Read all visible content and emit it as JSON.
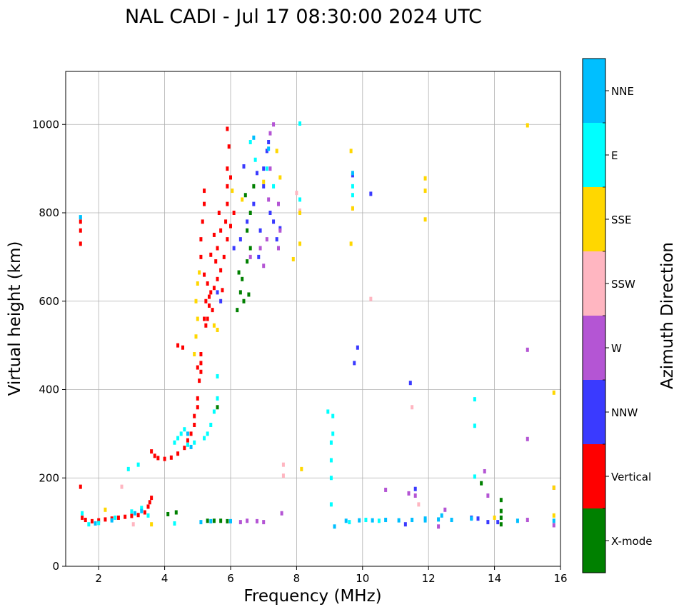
{
  "chart_data": {
    "type": "scatter",
    "title": "NAL CADI - Jul 17 08:30:00 2024 UTC",
    "xlabel": "Frequency (MHz)",
    "ylabel": "Virtual height (km)",
    "xlim": [
      1,
      16
    ],
    "ylim": [
      0,
      1120
    ],
    "xticks": [
      2,
      4,
      6,
      8,
      10,
      12,
      14,
      16
    ],
    "yticks": [
      0,
      200,
      400,
      600,
      800,
      1000
    ],
    "grid": true,
    "colorbar": {
      "label": "Azimuth Direction",
      "position": "right",
      "categories": [
        {
          "name": "X-mode",
          "color": "#008000"
        },
        {
          "name": "Vertical",
          "color": "#ff0000"
        },
        {
          "name": "NNW",
          "color": "#3a3aff"
        },
        {
          "name": "W",
          "color": "#b455d4"
        },
        {
          "name": "SSW",
          "color": "#ffb6c1"
        },
        {
          "name": "SSE",
          "color": "#ffd700"
        },
        {
          "name": "E",
          "color": "#00ffff"
        },
        {
          "name": "NNE",
          "color": "#00bfff"
        }
      ]
    },
    "series": [
      {
        "name": "Vertical",
        "points": [
          [
            1.45,
            780
          ],
          [
            1.45,
            760
          ],
          [
            1.45,
            730
          ],
          [
            1.45,
            180
          ],
          [
            1.5,
            110
          ],
          [
            1.6,
            105
          ],
          [
            1.8,
            102
          ],
          [
            2.0,
            104
          ],
          [
            2.2,
            106
          ],
          [
            2.4,
            108
          ],
          [
            2.6,
            110
          ],
          [
            2.8,
            112
          ],
          [
            3.0,
            114
          ],
          [
            3.2,
            116
          ],
          [
            3.4,
            122
          ],
          [
            3.5,
            135
          ],
          [
            3.55,
            145
          ],
          [
            3.6,
            155
          ],
          [
            3.6,
            260
          ],
          [
            3.7,
            250
          ],
          [
            3.8,
            245
          ],
          [
            4.0,
            243
          ],
          [
            4.2,
            246
          ],
          [
            4.4,
            255
          ],
          [
            4.6,
            268
          ],
          [
            4.7,
            285
          ],
          [
            4.8,
            300
          ],
          [
            4.9,
            320
          ],
          [
            4.9,
            340
          ],
          [
            5.0,
            360
          ],
          [
            5.0,
            380
          ],
          [
            5.05,
            420
          ],
          [
            5.1,
            440
          ],
          [
            5.1,
            460
          ],
          [
            5.1,
            480
          ],
          [
            4.4,
            500
          ],
          [
            4.55,
            495
          ],
          [
            5.0,
            450
          ],
          [
            5.2,
            560
          ],
          [
            5.25,
            545
          ],
          [
            5.3,
            560
          ],
          [
            5.35,
            590
          ],
          [
            5.4,
            620
          ],
          [
            5.3,
            640
          ],
          [
            5.2,
            660
          ],
          [
            5.1,
            700
          ],
          [
            5.1,
            740
          ],
          [
            5.15,
            780
          ],
          [
            5.2,
            820
          ],
          [
            5.2,
            850
          ],
          [
            5.25,
            600
          ],
          [
            5.35,
            610
          ],
          [
            5.45,
            580
          ],
          [
            5.5,
            630
          ],
          [
            5.6,
            650
          ],
          [
            5.7,
            670
          ],
          [
            5.8,
            700
          ],
          [
            5.9,
            740
          ],
          [
            5.85,
            780
          ],
          [
            5.9,
            820
          ],
          [
            5.9,
            860
          ],
          [
            5.9,
            900
          ],
          [
            5.95,
            950
          ],
          [
            5.9,
            990
          ],
          [
            5.65,
            800
          ],
          [
            5.7,
            760
          ],
          [
            5.6,
            720
          ],
          [
            6.0,
            770
          ],
          [
            6.0,
            880
          ],
          [
            6.1,
            800
          ],
          [
            5.5,
            750
          ],
          [
            5.55,
            690
          ],
          [
            5.75,
            625
          ],
          [
            5.4,
            705
          ]
        ]
      },
      {
        "name": "X-mode",
        "points": [
          [
            4.1,
            118
          ],
          [
            4.35,
            122
          ],
          [
            5.3,
            103
          ],
          [
            5.5,
            103
          ],
          [
            5.7,
            103
          ],
          [
            5.9,
            102
          ],
          [
            6.2,
            580
          ],
          [
            6.3,
            620
          ],
          [
            6.35,
            650
          ],
          [
            6.4,
            600
          ],
          [
            6.5,
            690
          ],
          [
            6.6,
            720
          ],
          [
            6.5,
            760
          ],
          [
            6.6,
            800
          ],
          [
            6.45,
            840
          ],
          [
            6.7,
            860
          ],
          [
            6.25,
            665
          ],
          [
            6.55,
            615
          ],
          [
            5.6,
            360
          ],
          [
            14.2,
            95
          ],
          [
            14.2,
            110
          ],
          [
            14.2,
            125
          ],
          [
            14.2,
            150
          ],
          [
            13.6,
            188
          ]
        ]
      },
      {
        "name": "NNW",
        "points": [
          [
            5.6,
            620
          ],
          [
            5.7,
            600
          ],
          [
            6.1,
            720
          ],
          [
            6.3,
            740
          ],
          [
            6.5,
            780
          ],
          [
            6.7,
            820
          ],
          [
            6.85,
            700
          ],
          [
            6.9,
            760
          ],
          [
            7.0,
            900
          ],
          [
            7.1,
            940
          ],
          [
            7.0,
            860
          ],
          [
            7.2,
            800
          ],
          [
            7.3,
            780
          ],
          [
            7.4,
            740
          ],
          [
            6.8,
            890
          ],
          [
            7.15,
            960
          ],
          [
            9.75,
            460
          ],
          [
            9.85,
            495
          ],
          [
            10.25,
            843
          ],
          [
            11.45,
            415
          ],
          [
            11.6,
            175
          ],
          [
            11.3,
            95
          ],
          [
            13.3,
            110
          ],
          [
            13.5,
            108
          ],
          [
            13.8,
            100
          ],
          [
            14.1,
            100
          ],
          [
            9.7,
            885
          ],
          [
            7.5,
            765
          ],
          [
            6.4,
            905
          ]
        ]
      },
      {
        "name": "W",
        "points": [
          [
            6.3,
            100
          ],
          [
            6.5,
            103
          ],
          [
            6.8,
            102
          ],
          [
            7.0,
            100
          ],
          [
            6.6,
            700
          ],
          [
            6.9,
            720
          ],
          [
            7.0,
            680
          ],
          [
            7.1,
            740
          ],
          [
            7.15,
            830
          ],
          [
            7.2,
            900
          ],
          [
            7.3,
            1000
          ],
          [
            7.2,
            980
          ],
          [
            7.45,
            720
          ],
          [
            7.5,
            760
          ],
          [
            7.45,
            820
          ],
          [
            10.7,
            173
          ],
          [
            11.4,
            165
          ],
          [
            11.6,
            160
          ],
          [
            12.5,
            128
          ],
          [
            13.7,
            215
          ],
          [
            13.8,
            160
          ],
          [
            15.0,
            490
          ],
          [
            15.0,
            288
          ],
          [
            15.0,
            105
          ],
          [
            15.8,
            93
          ],
          [
            15.8,
            178
          ],
          [
            12.3,
            90
          ],
          [
            7.55,
            120
          ]
        ]
      },
      {
        "name": "SSW",
        "points": [
          [
            7.6,
            230
          ],
          [
            7.6,
            205
          ],
          [
            8.0,
            845
          ],
          [
            8.1,
            805
          ],
          [
            10.25,
            605
          ],
          [
            11.5,
            360
          ],
          [
            11.7,
            140
          ],
          [
            9.7,
            810
          ],
          [
            3.05,
            95
          ],
          [
            2.7,
            180
          ]
        ]
      },
      {
        "name": "SSE",
        "points": [
          [
            2.2,
            128
          ],
          [
            3.6,
            95
          ],
          [
            4.9,
            480
          ],
          [
            4.95,
            520
          ],
          [
            5.0,
            560
          ],
          [
            4.95,
            600
          ],
          [
            5.0,
            640
          ],
          [
            5.05,
            665
          ],
          [
            5.6,
            535
          ],
          [
            5.5,
            545
          ],
          [
            6.05,
            850
          ],
          [
            6.35,
            830
          ],
          [
            7.0,
            870
          ],
          [
            7.4,
            940
          ],
          [
            7.5,
            880
          ],
          [
            7.9,
            695
          ],
          [
            8.1,
            730
          ],
          [
            8.1,
            800
          ],
          [
            8.15,
            220
          ],
          [
            9.65,
            940
          ],
          [
            9.65,
            730
          ],
          [
            11.9,
            878
          ],
          [
            11.9,
            850
          ],
          [
            11.9,
            785
          ],
          [
            15.0,
            998
          ],
          [
            15.8,
            393
          ],
          [
            15.8,
            178
          ],
          [
            15.8,
            115
          ],
          [
            14.0,
            110
          ],
          [
            9.7,
            810
          ]
        ]
      },
      {
        "name": "E",
        "points": [
          [
            1.45,
            790
          ],
          [
            1.5,
            120
          ],
          [
            1.7,
            95
          ],
          [
            2.0,
            98
          ],
          [
            2.5,
            110
          ],
          [
            2.9,
            220
          ],
          [
            3.2,
            230
          ],
          [
            3.3,
            132
          ],
          [
            3.0,
            124
          ],
          [
            3.5,
            115
          ],
          [
            4.3,
            280
          ],
          [
            4.4,
            290
          ],
          [
            4.5,
            300
          ],
          [
            4.6,
            310
          ],
          [
            4.7,
            275
          ],
          [
            4.9,
            280
          ],
          [
            5.2,
            290
          ],
          [
            5.3,
            300
          ],
          [
            5.4,
            320
          ],
          [
            5.5,
            350
          ],
          [
            5.6,
            380
          ],
          [
            5.6,
            430
          ],
          [
            6.6,
            960
          ],
          [
            6.75,
            920
          ],
          [
            7.1,
            900
          ],
          [
            7.3,
            860
          ],
          [
            8.1,
            1002
          ],
          [
            8.1,
            830
          ],
          [
            8.95,
            350
          ],
          [
            9.1,
            340
          ],
          [
            9.1,
            300
          ],
          [
            9.05,
            280
          ],
          [
            9.05,
            240
          ],
          [
            9.05,
            200
          ],
          [
            9.05,
            140
          ],
          [
            9.7,
            840
          ],
          [
            9.7,
            860
          ],
          [
            9.6,
            100
          ],
          [
            10.1,
            105
          ],
          [
            10.5,
            103
          ],
          [
            13.4,
            378
          ],
          [
            13.4,
            318
          ],
          [
            13.4,
            203
          ],
          [
            4.3,
            97
          ]
        ]
      },
      {
        "name": "NNE",
        "points": [
          [
            1.45,
            790
          ],
          [
            1.9,
            97
          ],
          [
            2.4,
            104
          ],
          [
            3.1,
            120
          ],
          [
            3.3,
            125
          ],
          [
            4.7,
            300
          ],
          [
            4.8,
            270
          ],
          [
            5.1,
            100
          ],
          [
            5.4,
            102
          ],
          [
            6.0,
            102
          ],
          [
            6.7,
            970
          ],
          [
            7.15,
            945
          ],
          [
            9.15,
            90
          ],
          [
            9.5,
            103
          ],
          [
            9.9,
            104
          ],
          [
            10.3,
            104
          ],
          [
            10.7,
            105
          ],
          [
            11.1,
            104
          ],
          [
            11.5,
            105
          ],
          [
            11.9,
            104
          ],
          [
            12.3,
            106
          ],
          [
            12.7,
            105
          ],
          [
            13.3,
            108
          ],
          [
            14.7,
            103
          ],
          [
            15.8,
            103
          ],
          [
            9.7,
            890
          ],
          [
            11.9,
            108
          ],
          [
            12.4,
            115
          ]
        ]
      }
    ]
  }
}
